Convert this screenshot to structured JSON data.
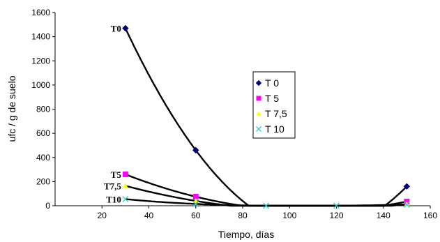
{
  "chart_data": {
    "type": "scatter",
    "xlabel": "Tiempo, días",
    "ylabel": "ufc / g de suelo",
    "xlim": [
      0,
      160
    ],
    "ylim": [
      0,
      1600
    ],
    "xticks": [
      20,
      40,
      60,
      80,
      100,
      120,
      140,
      160
    ],
    "yticks": [
      0,
      200,
      400,
      600,
      800,
      1000,
      1200,
      1400,
      1600
    ],
    "grid": false,
    "legend_position": "center",
    "series": [
      {
        "name": "T 0",
        "color": "#000080",
        "marker": "diamond",
        "points": [
          [
            30,
            1470
          ],
          [
            60,
            460
          ],
          [
            150,
            160
          ]
        ]
      },
      {
        "name": "T 5",
        "color": "#ff00ff",
        "marker": "square",
        "points": [
          [
            30,
            260
          ],
          [
            60,
            75
          ],
          [
            150,
            35
          ]
        ]
      },
      {
        "name": "T 7,5",
        "color": "#ffff00",
        "marker": "triangle",
        "points": [
          [
            30,
            165
          ],
          [
            60,
            40
          ],
          [
            150,
            15
          ]
        ]
      },
      {
        "name": "T 10",
        "color": "#33cccc",
        "marker": "x",
        "points": [
          [
            30,
            55
          ],
          [
            60,
            15
          ],
          [
            90,
            0
          ],
          [
            120,
            0
          ],
          [
            150,
            10
          ]
        ]
      }
    ],
    "annotations": [
      {
        "text": "T0",
        "series": 0
      },
      {
        "text": "T5",
        "series": 1
      },
      {
        "text": "T7,5",
        "series": 2
      },
      {
        "text": "T10",
        "series": 3
      }
    ]
  }
}
